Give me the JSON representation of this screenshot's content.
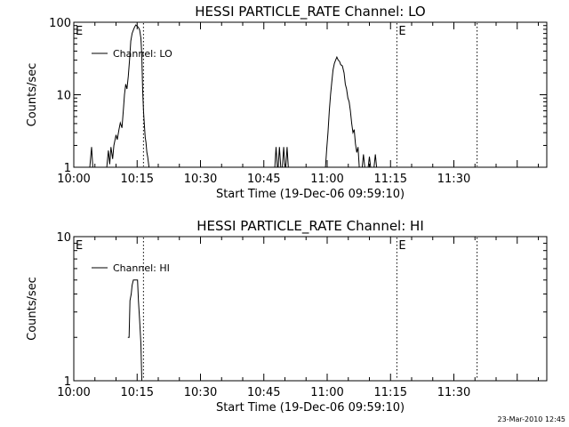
{
  "footer": {
    "timestamp": "23-Mar-2010 12:45"
  },
  "chart_data": [
    {
      "type": "line",
      "title": "HESSI PARTICLE_RATE Channel: LO",
      "xlabel": "Start Time (19-Dec-06 09:59:10)",
      "ylabel": "Counts/sec",
      "y_scale": "log",
      "xlim_min": [
        0,
        112
      ],
      "ylim": [
        1,
        100
      ],
      "x_ticks": [
        {
          "min": 0,
          "label": "10:00"
        },
        {
          "min": 15,
          "label": "10:15"
        },
        {
          "min": 30,
          "label": "10:30"
        },
        {
          "min": 45,
          "label": "10:45"
        },
        {
          "min": 60,
          "label": "11:00"
        },
        {
          "min": 75,
          "label": "11:15"
        },
        {
          "min": 90,
          "label": "11:30"
        }
      ],
      "y_ticks": [
        {
          "v": 1,
          "label": "1"
        },
        {
          "v": 10,
          "label": "10"
        },
        {
          "v": 100,
          "label": "100"
        }
      ],
      "legend": {
        "position": "top-left",
        "label": "Channel: LO"
      },
      "markers": [
        {
          "min": 0,
          "label": "E",
          "line": false
        },
        {
          "min": 16.5,
          "label": "",
          "line": true
        },
        {
          "min": 76.5,
          "label": "E",
          "line": true
        },
        {
          "min": 95.5,
          "label": "",
          "line": true
        }
      ],
      "series": [
        {
          "segments": [
            [
              [
                3.8,
                1
              ],
              [
                4.2,
                1.9
              ],
              [
                4.5,
                1
              ]
            ],
            [
              [
                7.8,
                1
              ],
              [
                8.2,
                1.7
              ],
              [
                8.5,
                1.1
              ],
              [
                8.8,
                1.9
              ],
              [
                9.2,
                1.3
              ],
              [
                9.5,
                2
              ],
              [
                10,
                2.8
              ],
              [
                10.3,
                2.4
              ],
              [
                10.7,
                3.3
              ],
              [
                11,
                4.1
              ],
              [
                11.4,
                3.5
              ],
              [
                11.8,
                7
              ],
              [
                12,
                10
              ],
              [
                12.3,
                14
              ],
              [
                12.6,
                12
              ],
              [
                12.9,
                18
              ],
              [
                13.2,
                30
              ],
              [
                13.5,
                55
              ],
              [
                13.8,
                70
              ],
              [
                14.1,
                78
              ],
              [
                14.4,
                86
              ],
              [
                14.7,
                92
              ],
              [
                15,
                88
              ],
              [
                15.3,
                85
              ],
              [
                15.6,
                78
              ],
              [
                15.9,
                60
              ],
              [
                16.1,
                35
              ],
              [
                16.3,
                12
              ],
              [
                16.5,
                6
              ],
              [
                16.7,
                4
              ],
              [
                16.9,
                2.6
              ],
              [
                17.1,
                2.2
              ],
              [
                17.3,
                1.6
              ],
              [
                17.5,
                1.4
              ],
              [
                17.8,
                1
              ]
            ],
            [
              [
                47.6,
                1
              ],
              [
                47.9,
                1.9
              ],
              [
                48.2,
                1
              ]
            ],
            [
              [
                48.4,
                1
              ],
              [
                48.7,
                1.9
              ],
              [
                49.0,
                1
              ]
            ],
            [
              [
                49.4,
                1
              ],
              [
                49.7,
                1.9
              ],
              [
                50.0,
                1
              ]
            ],
            [
              [
                50.2,
                1
              ],
              [
                50.5,
                1.9
              ],
              [
                50.8,
                1
              ]
            ],
            [
              [
                59.6,
                1
              ],
              [
                59.9,
                1.8
              ],
              [
                60.2,
                3
              ],
              [
                60.5,
                6
              ],
              [
                60.8,
                10
              ],
              [
                61.1,
                15
              ],
              [
                61.4,
                22
              ],
              [
                61.7,
                27
              ],
              [
                62,
                30
              ],
              [
                62.3,
                33
              ],
              [
                62.6,
                30
              ],
              [
                62.9,
                29
              ],
              [
                63.2,
                26
              ],
              [
                63.6,
                25
              ],
              [
                64,
                20
              ],
              [
                64.3,
                14
              ],
              [
                64.6,
                12
              ],
              [
                64.9,
                9
              ],
              [
                65.2,
                8
              ],
              [
                65.5,
                6
              ],
              [
                65.8,
                4
              ],
              [
                66.1,
                3
              ],
              [
                66.4,
                3.3
              ],
              [
                66.7,
                2.1
              ],
              [
                67,
                1.6
              ],
              [
                67.3,
                1.9
              ],
              [
                67.6,
                1
              ]
            ],
            [
              [
                68.3,
                1
              ],
              [
                68.6,
                1.5
              ],
              [
                68.9,
                1
              ]
            ],
            [
              [
                69.7,
                1
              ],
              [
                70,
                1.4
              ],
              [
                70.3,
                1
              ]
            ],
            [
              [
                71.1,
                1
              ],
              [
                71.4,
                1.5
              ],
              [
                71.7,
                1
              ]
            ]
          ]
        }
      ]
    },
    {
      "type": "line",
      "title": "HESSI PARTICLE_RATE Channel: HI",
      "xlabel": "Start Time (19-Dec-06 09:59:10)",
      "ylabel": "Counts/sec",
      "y_scale": "log",
      "xlim_min": [
        0,
        112
      ],
      "ylim": [
        1,
        10
      ],
      "x_ticks": [
        {
          "min": 0,
          "label": "10:00"
        },
        {
          "min": 15,
          "label": "10:15"
        },
        {
          "min": 30,
          "label": "10:30"
        },
        {
          "min": 45,
          "label": "10:45"
        },
        {
          "min": 60,
          "label": "11:00"
        },
        {
          "min": 75,
          "label": "11:15"
        },
        {
          "min": 90,
          "label": "11:30"
        }
      ],
      "y_ticks": [
        {
          "v": 1,
          "label": "1"
        },
        {
          "v": 10,
          "label": "10"
        }
      ],
      "legend": {
        "position": "top-left",
        "label": "Channel: HI"
      },
      "markers": [
        {
          "min": 0,
          "label": "E",
          "line": false
        },
        {
          "min": 16.5,
          "label": "",
          "line": true
        },
        {
          "min": 76.5,
          "label": "E",
          "line": true
        },
        {
          "min": 95.5,
          "label": "",
          "line": true
        }
      ],
      "series": [
        {
          "segments": [
            [
              [
                12.8,
                2
              ],
              [
                13.1,
                2
              ],
              [
                13.3,
                3.6
              ],
              [
                13.6,
                4
              ],
              [
                13.8,
                4.6
              ],
              [
                14.1,
                5
              ],
              [
                14.6,
                5
              ],
              [
                15.1,
                5
              ],
              [
                15.3,
                3.6
              ],
              [
                15.6,
                2.6
              ],
              [
                15.9,
                1.8
              ],
              [
                16.1,
                1
              ]
            ]
          ]
        }
      ]
    }
  ]
}
